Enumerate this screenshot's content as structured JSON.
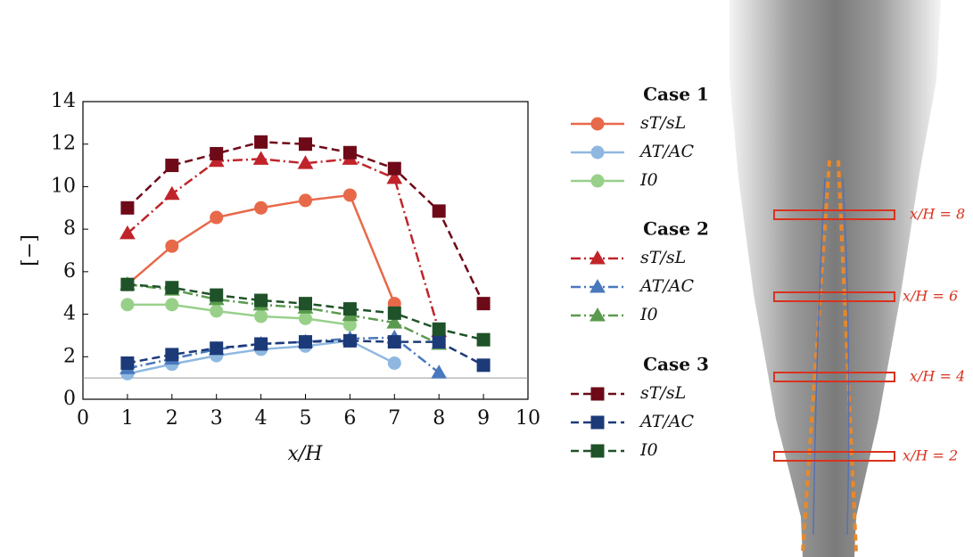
{
  "chart_data": {
    "type": "line",
    "xlabel": "x/H",
    "ylabel": "[−]",
    "x": [
      1,
      2,
      3,
      4,
      5,
      6,
      7,
      8,
      9
    ],
    "xlim": [
      0,
      10
    ],
    "xticks": [
      0,
      1,
      2,
      3,
      4,
      5,
      6,
      7,
      8,
      9,
      10
    ],
    "ylim": [
      0,
      14
    ],
    "yticks": [
      0,
      2,
      4,
      6,
      8,
      10,
      12,
      14
    ],
    "hline": 1,
    "legend_groups": [
      "Case 1",
      "Case 2",
      "Case 3"
    ],
    "series": [
      {
        "name": "sT/sL",
        "color": "#e8694a",
        "marker": "circle",
        "dash": "solid",
        "values": [
          5.4,
          7.2,
          8.55,
          9.0,
          9.35,
          9.6,
          4.5,
          null,
          null
        ]
      },
      {
        "name": "AT/AC",
        "color": "#8fb8e0",
        "marker": "circle",
        "dash": "solid",
        "values": [
          1.2,
          1.65,
          2.05,
          2.35,
          2.5,
          2.75,
          1.7,
          null,
          null
        ]
      },
      {
        "name": "I0",
        "color": "#98d08a",
        "marker": "circle",
        "dash": "solid",
        "values": [
          4.45,
          4.45,
          4.15,
          3.9,
          3.8,
          3.5,
          null,
          null,
          null
        ]
      },
      {
        "name": "sT/sL",
        "color": "#c0242a",
        "marker": "triangle",
        "dash": "dashdot",
        "values": [
          7.8,
          9.65,
          11.2,
          11.3,
          11.1,
          11.3,
          10.4,
          3.2,
          null
        ]
      },
      {
        "name": "AT/AC",
        "color": "#4a78bd",
        "marker": "triangle",
        "dash": "dashdot",
        "values": [
          1.45,
          1.9,
          2.35,
          2.6,
          2.7,
          2.85,
          2.9,
          1.25,
          null
        ]
      },
      {
        "name": "I0",
        "color": "#5a9a4e",
        "marker": "triangle",
        "dash": "dashdot",
        "values": [
          5.4,
          5.15,
          4.7,
          4.45,
          4.3,
          3.95,
          3.6,
          2.6,
          null
        ]
      },
      {
        "name": "sT/sL",
        "color": "#6e0a18",
        "marker": "square",
        "dash": "dashed",
        "values": [
          9.0,
          11.0,
          11.55,
          12.1,
          12.0,
          11.6,
          10.85,
          8.85,
          4.5
        ]
      },
      {
        "name": "AT/AC",
        "color": "#1d3a78",
        "marker": "square",
        "dash": "dashed",
        "values": [
          1.7,
          2.1,
          2.4,
          2.6,
          2.7,
          2.75,
          2.7,
          2.7,
          1.6
        ]
      },
      {
        "name": "I0",
        "color": "#1f5228",
        "marker": "square",
        "dash": "dashed",
        "values": [
          5.4,
          5.25,
          4.9,
          4.65,
          4.5,
          4.25,
          4.05,
          3.3,
          2.8
        ]
      }
    ]
  },
  "figure_panel": {
    "labels": [
      "x/H = 8",
      "x/H = 6",
      "x/H = 4",
      "x/H = 2"
    ]
  }
}
